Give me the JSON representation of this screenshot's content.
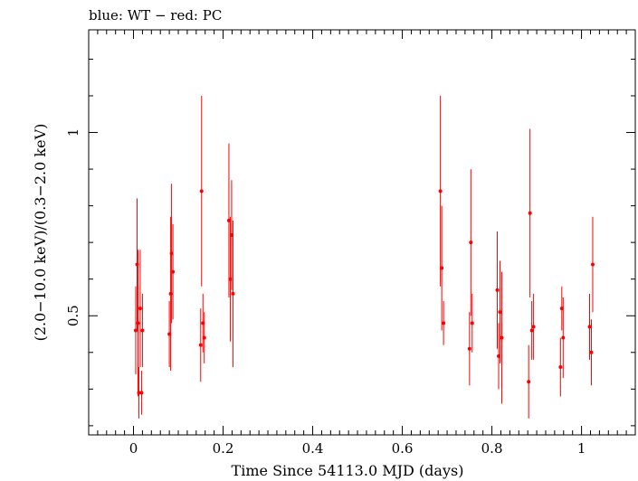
{
  "header": {
    "label": "blue: WT − red: PC"
  },
  "chart_data": {
    "type": "scatter",
    "title": "",
    "xlabel": "Time Since 54113.0 MJD (days)",
    "ylabel": "(2.0−10.0 keV)/(0.3−2.0 keV)",
    "xlim": [
      -0.1,
      1.12
    ],
    "ylim": [
      0.175,
      1.28
    ],
    "xticks": [
      0,
      0.2,
      0.4,
      0.6,
      0.8,
      1
    ],
    "xtick_labels": [
      "0",
      "0.2",
      "0.4",
      "0.6",
      "0.8",
      "1"
    ],
    "yticks": [
      0.5,
      1
    ],
    "ytick_labels": [
      "0.5",
      "1"
    ],
    "grid": false,
    "series": [
      {
        "color": "#ff0000",
        "x": [
          0.005,
          0.008,
          0.01,
          0.012,
          0.015,
          0.018,
          0.02,
          0.08,
          0.083,
          0.085,
          0.088,
          0.15,
          0.152,
          0.155,
          0.158,
          0.213,
          0.216,
          0.219,
          0.222,
          0.685,
          0.688,
          0.692,
          0.75,
          0.753,
          0.756,
          0.812,
          0.815,
          0.818,
          0.822,
          0.882,
          0.885,
          0.889,
          0.893,
          0.953,
          0.956,
          0.959,
          1.018,
          1.022,
          1.025
        ],
        "y": [
          0.46,
          0.64,
          0.48,
          0.29,
          0.52,
          0.29,
          0.46,
          0.45,
          0.56,
          0.67,
          0.62,
          0.42,
          0.84,
          0.48,
          0.44,
          0.76,
          0.6,
          0.72,
          0.56,
          0.84,
          0.63,
          0.48,
          0.41,
          0.7,
          0.48,
          0.57,
          0.39,
          0.51,
          0.44,
          0.32,
          0.78,
          0.46,
          0.47,
          0.36,
          0.52,
          0.44,
          0.47,
          0.4,
          0.64
        ],
        "yerr": [
          0.12,
          0.18,
          0.2,
          0.07,
          0.16,
          0.06,
          0.1,
          0.09,
          0.21,
          0.19,
          0.13,
          0.1,
          0.26,
          0.08,
          0.07,
          0.21,
          0.17,
          0.15,
          0.2,
          0.26,
          0.17,
          0.06,
          0.1,
          0.2,
          0.08,
          0.16,
          0.09,
          0.14,
          0.18,
          0.1,
          0.23,
          0.08,
          0.09,
          0.08,
          0.06,
          0.11,
          0.09,
          0.09,
          0.13
        ]
      }
    ]
  }
}
